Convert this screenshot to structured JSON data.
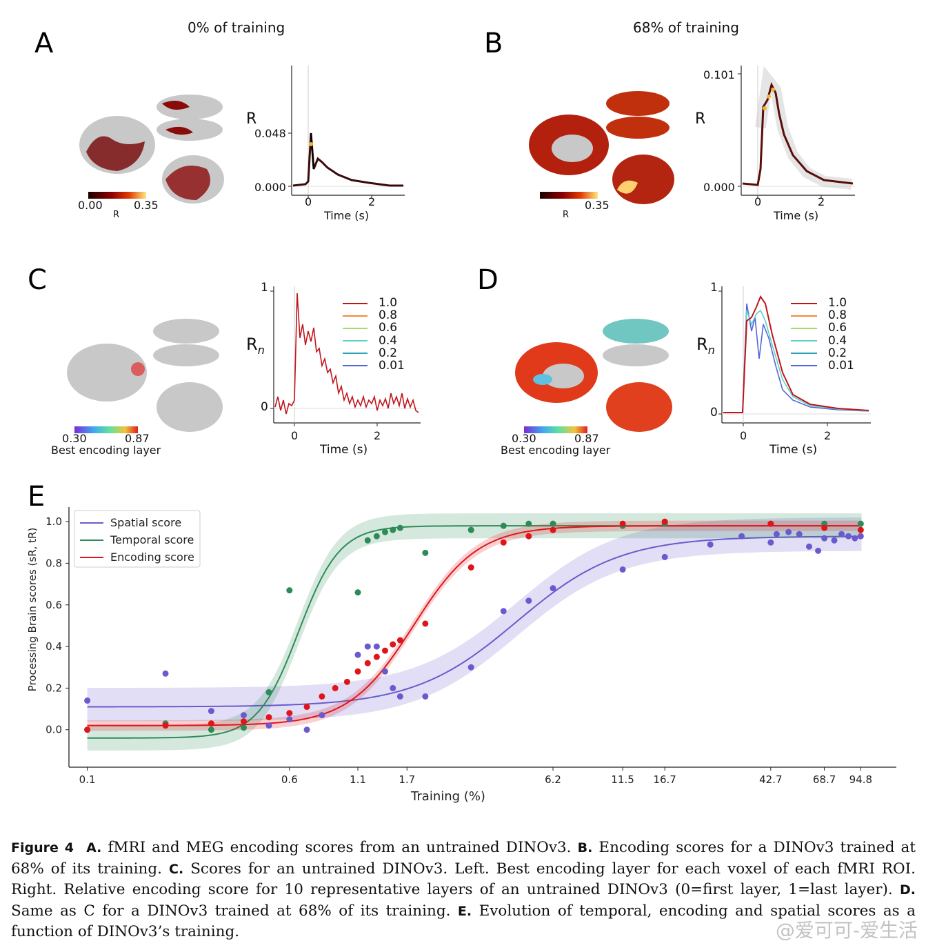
{
  "panels": {
    "A": {
      "letter": "A",
      "title": "0% of training",
      "cbar_min": "0.00",
      "cbar_max": "0.35",
      "cbar_label": "R",
      "ylabel": "R",
      "ytick_top": "0.048",
      "ytick_bottom": "0.000",
      "xticks": [
        "0",
        "2"
      ],
      "xlabel": "Time (s)"
    },
    "B": {
      "letter": "B",
      "title": "68% of training",
      "cbar_max": "0.35",
      "cbar_label": "R",
      "ylabel": "R",
      "ytick_top": "0.101",
      "ytick_bottom": "0.000",
      "xticks": [
        "0",
        "2"
      ],
      "xlabel": "Time (s)"
    },
    "C": {
      "letter": "C",
      "cbar_min": "0.30",
      "cbar_max": "0.87",
      "cbar_label": "Best encoding layer",
      "ylabel": "R",
      "ylabel_sub": "n",
      "ytick_top": "1",
      "ytick_bottom": "0",
      "xticks": [
        "0",
        "2"
      ],
      "xlabel": "Time (s)",
      "legend": [
        "1.0",
        "0.8",
        "0.6",
        "0.4",
        "0.2",
        "0.01"
      ]
    },
    "D": {
      "letter": "D",
      "cbar_min": "0.30",
      "cbar_max": "0.87",
      "cbar_label": "Best encoding layer",
      "ylabel": "R",
      "ylabel_sub": "n",
      "ytick_top": "1",
      "ytick_bottom": "0",
      "xticks": [
        "0",
        "2"
      ],
      "xlabel": "Time (s)",
      "legend": [
        "1.0",
        "0.8",
        "0.6",
        "0.4",
        "0.2",
        "0.01"
      ]
    }
  },
  "legend_colors": [
    "#c0141a",
    "#f08a3a",
    "#a8d86a",
    "#5fd3c8",
    "#2aa5b8",
    "#5566d8"
  ],
  "panelE": {
    "letter": "E"
  },
  "chart_data": {
    "type": "scatter",
    "xlabel": "Training (%)",
    "ylabel": "Processing Brain scores (sR, tR)",
    "x_scale": "log",
    "xticks": [
      "0.1",
      "0.6",
      "1.1",
      "1.7",
      "6.2",
      "11.5",
      "16.7",
      "42.7",
      "68.7",
      "94.8"
    ],
    "yticks": [
      "0.0",
      "0.2",
      "0.4",
      "0.6",
      "0.8",
      "1.0"
    ],
    "ylim": [
      -0.18,
      1.07
    ],
    "legend_position": "top-left",
    "series": [
      {
        "name": "Spatial score",
        "color": "#6a5acd",
        "points": [
          [
            0.1,
            0.14
          ],
          [
            0.2,
            0.27
          ],
          [
            0.3,
            0.09
          ],
          [
            0.4,
            0.07
          ],
          [
            0.5,
            0.02
          ],
          [
            0.6,
            0.05
          ],
          [
            0.7,
            0.0
          ],
          [
            0.8,
            0.07
          ],
          [
            1.1,
            0.36
          ],
          [
            1.2,
            0.4
          ],
          [
            1.3,
            0.4
          ],
          [
            1.4,
            0.28
          ],
          [
            1.5,
            0.2
          ],
          [
            1.6,
            0.16
          ],
          [
            2.0,
            0.16
          ],
          [
            3.0,
            0.3
          ],
          [
            4.0,
            0.57
          ],
          [
            5.0,
            0.62
          ],
          [
            6.2,
            0.68
          ],
          [
            11.5,
            0.77
          ],
          [
            16.7,
            0.83
          ],
          [
            25,
            0.89
          ],
          [
            33,
            0.93
          ],
          [
            42.7,
            0.9
          ],
          [
            45,
            0.94
          ],
          [
            50,
            0.95
          ],
          [
            55,
            0.94
          ],
          [
            60,
            0.88
          ],
          [
            65,
            0.86
          ],
          [
            68.7,
            0.92
          ],
          [
            75,
            0.91
          ],
          [
            80,
            0.94
          ],
          [
            85,
            0.93
          ],
          [
            90,
            0.92
          ],
          [
            94.8,
            0.93
          ]
        ]
      },
      {
        "name": "Temporal score",
        "color": "#2e8b57",
        "points": [
          [
            0.1,
            0.0
          ],
          [
            0.2,
            0.03
          ],
          [
            0.3,
            0.0
          ],
          [
            0.4,
            0.01
          ],
          [
            0.5,
            0.18
          ],
          [
            0.6,
            0.67
          ],
          [
            1.1,
            0.66
          ],
          [
            1.2,
            0.91
          ],
          [
            1.3,
            0.93
          ],
          [
            1.4,
            0.95
          ],
          [
            1.5,
            0.96
          ],
          [
            1.6,
            0.97
          ],
          [
            2.0,
            0.85
          ],
          [
            3.0,
            0.96
          ],
          [
            4.0,
            0.98
          ],
          [
            5.0,
            0.99
          ],
          [
            6.2,
            0.99
          ],
          [
            11.5,
            0.98
          ],
          [
            16.7,
            0.99
          ],
          [
            42.7,
            0.99
          ],
          [
            68.7,
            0.99
          ],
          [
            94.8,
            0.99
          ]
        ]
      },
      {
        "name": "Encoding score",
        "color": "#e0151b",
        "points": [
          [
            0.1,
            0.0
          ],
          [
            0.2,
            0.02
          ],
          [
            0.3,
            0.03
          ],
          [
            0.4,
            0.04
          ],
          [
            0.5,
            0.06
          ],
          [
            0.6,
            0.08
          ],
          [
            0.7,
            0.11
          ],
          [
            0.8,
            0.16
          ],
          [
            0.9,
            0.2
          ],
          [
            1.0,
            0.23
          ],
          [
            1.1,
            0.28
          ],
          [
            1.2,
            0.32
          ],
          [
            1.3,
            0.35
          ],
          [
            1.4,
            0.38
          ],
          [
            1.5,
            0.41
          ],
          [
            1.6,
            0.43
          ],
          [
            2.0,
            0.51
          ],
          [
            3.0,
            0.78
          ],
          [
            4.0,
            0.9
          ],
          [
            5.0,
            0.93
          ],
          [
            6.2,
            0.96
          ],
          [
            11.5,
            0.99
          ],
          [
            16.7,
            1.0
          ],
          [
            42.7,
            0.99
          ],
          [
            68.7,
            0.97
          ],
          [
            94.8,
            0.96
          ]
        ]
      }
    ],
    "fits": [
      {
        "name": "Spatial score",
        "bottom": 0.11,
        "top": 0.93,
        "mid": 4.5,
        "slope": 2.2
      },
      {
        "name": "Temporal score",
        "bottom": -0.04,
        "top": 0.98,
        "mid": 0.65,
        "slope": 5.5
      },
      {
        "name": "Encoding score",
        "bottom": 0.02,
        "top": 0.98,
        "mid": 1.8,
        "slope": 3.5
      }
    ]
  },
  "caption": {
    "fig": "Figure 4",
    "A_lbl": "A.",
    "A_txt": "fMRI and MEG encoding scores from an untrained DINOv3.",
    "B_lbl": "B.",
    "B_txt": "Encoding scores for a DINOv3 trained at 68% of its training.",
    "C_lbl": "C.",
    "C_txt": "Scores for an untrained DINOv3. Left. Best encoding layer for each voxel of each fMRI ROI. Right. Relative encoding score for 10 representative layers of an untrained DINOv3 (0=first layer, 1=last layer).",
    "D_lbl": "D.",
    "D_txt": "Same as C for a DINOv3 trained at 68% of its training.",
    "E_lbl": "E.",
    "E_txt": "Evolution of temporal, encoding and spatial scores as a function of DINOv3’s training."
  },
  "watermark": "@爱可可-爱生活"
}
